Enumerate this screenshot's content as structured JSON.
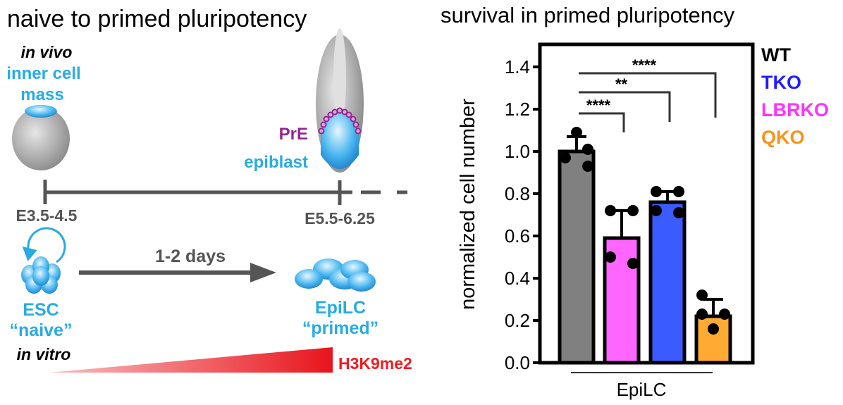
{
  "diagram": {
    "title": "naive to primed pluripotency",
    "in_vivo": "in vivo",
    "icm_line1": "inner cell",
    "icm_line2": "mass",
    "pre": "PrE",
    "epiblast": "epiblast",
    "stage1": "E3.5-4.5",
    "stage2": "E5.5-6.25",
    "duration": "1-2 days",
    "esc": "ESC",
    "naive": "“naive”",
    "epilc": "EpiLC",
    "primed": "“primed”",
    "in_vitro": "in vitro",
    "mark": "H3K9me2",
    "colors": {
      "cyan": "#29abe2",
      "purple": "#93278f",
      "gray": "#555555",
      "red": "#ed1c24"
    }
  },
  "chart_data": {
    "type": "bar",
    "title": "survival in primed pluripotency",
    "ylabel": "normalized cell number",
    "xlabel": "EpiLC",
    "ylim": [
      0,
      1.4
    ],
    "yticks": [
      "0.0",
      "0.2",
      "0.4",
      "0.6",
      "0.8",
      "1.0",
      "1.2",
      "1.4"
    ],
    "categories": [
      "WT",
      "LBRKO",
      "TKO",
      "QKO"
    ],
    "values": [
      1.0,
      0.59,
      0.76,
      0.22
    ],
    "errors": [
      0.07,
      0.13,
      0.05,
      0.08
    ],
    "points": [
      [
        1.09,
        1.01,
        0.97,
        0.93
      ],
      [
        0.72,
        0.72,
        0.5,
        0.47
      ],
      [
        0.81,
        0.81,
        0.72,
        0.71
      ],
      [
        0.32,
        0.23,
        0.23,
        0.16
      ]
    ],
    "colors": [
      "#808080",
      "#ff66ff",
      "#3a5bff",
      "#ffaa33"
    ],
    "legend": [
      {
        "label": "WT",
        "color": "#000000"
      },
      {
        "label": "TKO",
        "color": "#1f1fff"
      },
      {
        "label": "LBRKO",
        "color": "#ff33ff"
      },
      {
        "label": "QKO",
        "color": "#f7931e"
      }
    ],
    "legend_position": "right",
    "significance": [
      {
        "from": 0,
        "to": 1,
        "label": "****",
        "y": 1.18,
        "end": 1.09
      },
      {
        "from": 0,
        "to": 2,
        "label": "**",
        "y": 1.28,
        "end": 1.14
      },
      {
        "from": 0,
        "to": 3,
        "label": "****",
        "y": 1.37,
        "end": 1.16
      }
    ]
  }
}
